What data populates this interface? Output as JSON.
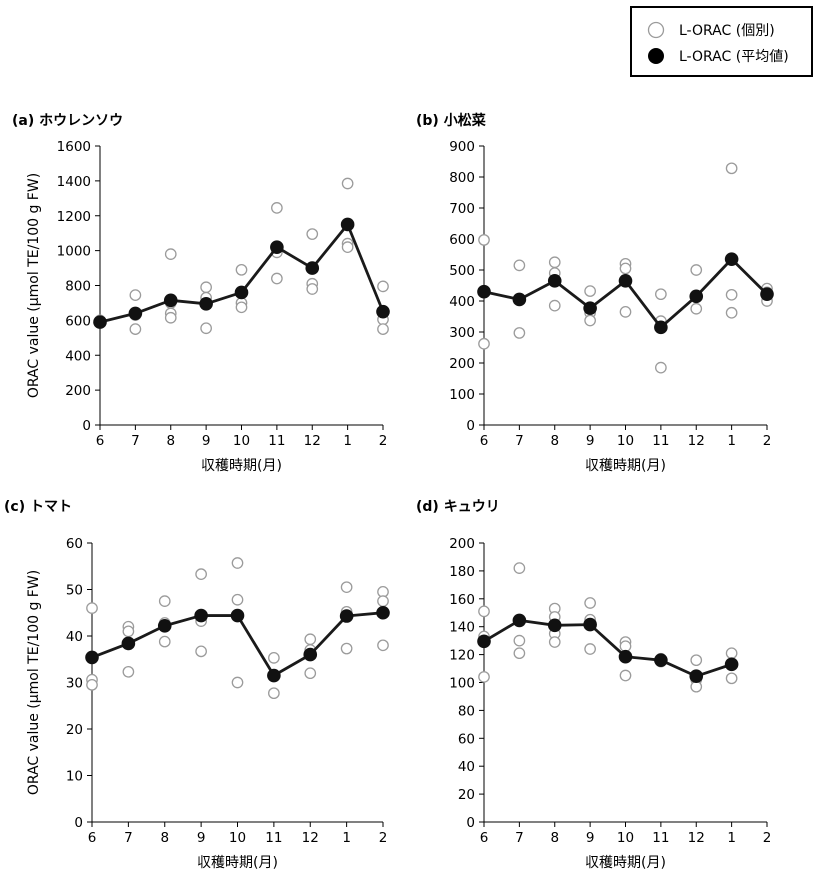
{
  "legend": {
    "individual_label": "L-ORAC (個別)",
    "mean_label": "L-ORAC (平均値)"
  },
  "shared_ylabel": "ORAC value (μmol TE/100 g FW)",
  "chart_data": [
    {
      "id": "a",
      "type": "scatter",
      "title": "(a) ホウレンソウ",
      "xlabel": "収穫時期(月)",
      "ylabel": "ORAC value (μmol TE/100 g FW)",
      "categories": [
        "6",
        "7",
        "8",
        "9",
        "10",
        "11",
        "12",
        "1",
        "2"
      ],
      "ylim": [
        0,
        1600
      ],
      "yticks": [
        0,
        200,
        400,
        600,
        800,
        1000,
        1200,
        1400,
        1600
      ],
      "grid": false,
      "legend_position": "top-right",
      "series": [
        {
          "name": "L-ORAC (個別)",
          "points": [
            [
              0,
              600
            ],
            [
              0,
              590
            ],
            [
              1,
              745
            ],
            [
              1,
              630
            ],
            [
              1,
              550
            ],
            [
              2,
              980
            ],
            [
              2,
              700
            ],
            [
              2,
              640
            ],
            [
              2,
              615
            ],
            [
              3,
              790
            ],
            [
              3,
              730
            ],
            [
              3,
              690
            ],
            [
              3,
              555
            ],
            [
              4,
              890
            ],
            [
              4,
              700
            ],
            [
              4,
              675
            ],
            [
              5,
              1245
            ],
            [
              5,
              990
            ],
            [
              5,
              840
            ],
            [
              6,
              1095
            ],
            [
              6,
              810
            ],
            [
              6,
              780
            ],
            [
              7,
              1385
            ],
            [
              7,
              1040
            ],
            [
              7,
              1020
            ],
            [
              8,
              795
            ],
            [
              8,
              605
            ],
            [
              8,
              550
            ]
          ]
        },
        {
          "name": "L-ORAC (平均値)",
          "values": [
            590,
            640,
            715,
            695,
            760,
            1020,
            900,
            1150,
            650
          ]
        }
      ]
    },
    {
      "id": "b",
      "type": "scatter",
      "title": "(b) 小松菜",
      "xlabel": "収穫時期(月)",
      "ylabel": "",
      "categories": [
        "6",
        "7",
        "8",
        "9",
        "10",
        "11",
        "12",
        "1",
        "2"
      ],
      "ylim": [
        0,
        900
      ],
      "yticks": [
        0,
        100,
        200,
        300,
        400,
        500,
        600,
        700,
        800,
        900
      ],
      "grid": false,
      "series": [
        {
          "name": "L-ORAC (個別)",
          "points": [
            [
              0,
              597
            ],
            [
              0,
              430
            ],
            [
              0,
              262
            ],
            [
              1,
              515
            ],
            [
              1,
              405
            ],
            [
              1,
              297
            ],
            [
              2,
              525
            ],
            [
              2,
              490
            ],
            [
              2,
              385
            ],
            [
              3,
              432
            ],
            [
              3,
              362
            ],
            [
              3,
              337
            ],
            [
              4,
              520
            ],
            [
              4,
              505
            ],
            [
              4,
              365
            ],
            [
              5,
              422
            ],
            [
              5,
              335
            ],
            [
              5,
              317
            ],
            [
              5,
              185
            ],
            [
              6,
              500
            ],
            [
              6,
              375
            ],
            [
              7,
              828
            ],
            [
              7,
              420
            ],
            [
              7,
              362
            ],
            [
              8,
              440
            ],
            [
              8,
              428
            ],
            [
              8,
              400
            ]
          ]
        },
        {
          "name": "L-ORAC (平均値)",
          "values": [
            430,
            405,
            465,
            377,
            465,
            315,
            415,
            535,
            422
          ]
        }
      ]
    },
    {
      "id": "c",
      "type": "scatter",
      "title": "(c) トマト",
      "xlabel": "収穫時期(月)",
      "ylabel": "ORAC value (μmol TE/100 g FW)",
      "categories": [
        "6",
        "7",
        "8",
        "9",
        "10",
        "11",
        "12",
        "1",
        "2"
      ],
      "ylim": [
        0,
        60
      ],
      "yticks": [
        0,
        10,
        20,
        30,
        40,
        50,
        60
      ],
      "grid": false,
      "series": [
        {
          "name": "L-ORAC (個別)",
          "points": [
            [
              0,
              46
            ],
            [
              0,
              30.6
            ],
            [
              0,
              29.5
            ],
            [
              1,
              42
            ],
            [
              1,
              41
            ],
            [
              1,
              32.3
            ],
            [
              2,
              47.5
            ],
            [
              2,
              42.8
            ],
            [
              2,
              38.8
            ],
            [
              3,
              53.3
            ],
            [
              3,
              43.2
            ],
            [
              3,
              36.7
            ],
            [
              4,
              55.7
            ],
            [
              4,
              47.8
            ],
            [
              4,
              30
            ],
            [
              5,
              35.3
            ],
            [
              5,
              27.7
            ],
            [
              6,
              39.3
            ],
            [
              6,
              37
            ],
            [
              6,
              32
            ],
            [
              7,
              50.5
            ],
            [
              7,
              45.2
            ],
            [
              7,
              37.3
            ],
            [
              8,
              49.5
            ],
            [
              8,
              47.5
            ],
            [
              8,
              38
            ]
          ]
        },
        {
          "name": "L-ORAC (平均値)",
          "values": [
            35.4,
            38.4,
            42.2,
            44.4,
            44.4,
            31.5,
            36.0,
            44.3,
            45.0
          ]
        }
      ]
    },
    {
      "id": "d",
      "type": "scatter",
      "title": "(d) キュウリ",
      "xlabel": "収穫時期(月)",
      "ylabel": "",
      "categories": [
        "6",
        "7",
        "8",
        "9",
        "10",
        "11",
        "12",
        "1",
        "2"
      ],
      "ylim": [
        0,
        200
      ],
      "yticks": [
        0,
        20,
        40,
        60,
        80,
        100,
        120,
        140,
        160,
        180,
        200
      ],
      "grid": false,
      "series": [
        {
          "name": "L-ORAC (個別)",
          "points": [
            [
              0,
              151
            ],
            [
              0,
              133
            ],
            [
              0,
              104
            ],
            [
              1,
              182
            ],
            [
              1,
              130
            ],
            [
              1,
              121
            ],
            [
              2,
              153
            ],
            [
              2,
              147
            ],
            [
              2,
              135
            ],
            [
              2,
              129
            ],
            [
              3,
              157
            ],
            [
              3,
              145
            ],
            [
              3,
              124
            ],
            [
              4,
              129
            ],
            [
              4,
              126
            ],
            [
              4,
              105
            ],
            [
              5,
              117
            ],
            [
              5,
              115
            ],
            [
              6,
              116
            ],
            [
              6,
              102
            ],
            [
              6,
              97
            ],
            [
              7,
              121
            ],
            [
              7,
              114
            ],
            [
              7,
              103
            ]
          ]
        },
        {
          "name": "L-ORAC (平均値)",
          "values": [
            129.5,
            144.5,
            141,
            141.5,
            118.5,
            116,
            104.5,
            113,
            null
          ]
        }
      ]
    }
  ]
}
